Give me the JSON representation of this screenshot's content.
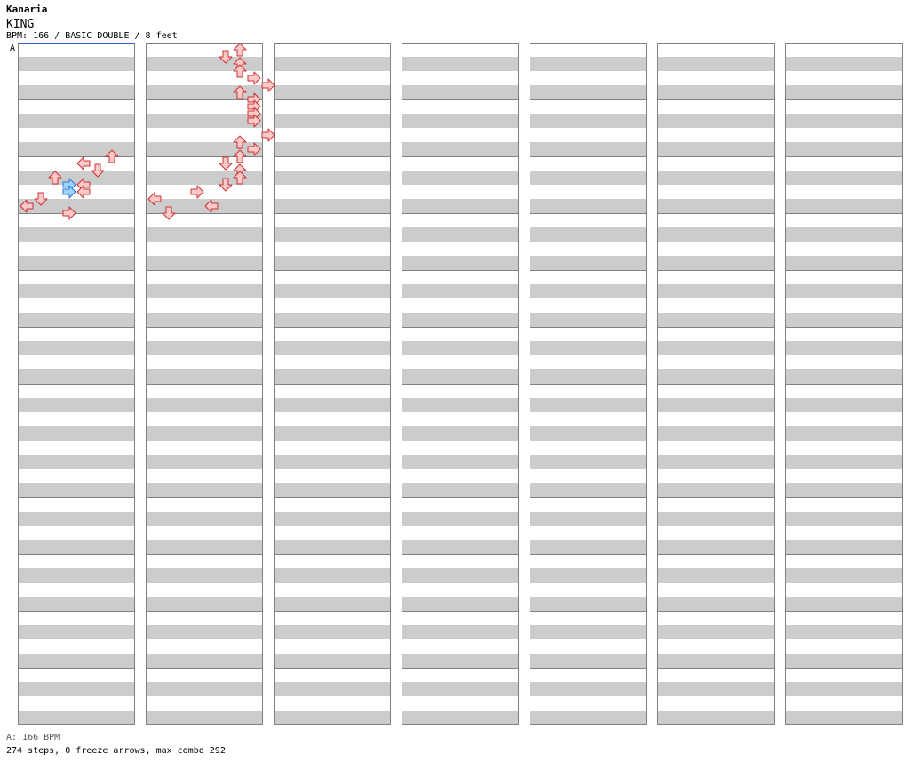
{
  "header": {
    "artist": "Kanaria",
    "title": "KING",
    "info": "BPM: 166 / BASIC DOUBLE / 8 feet",
    "bpm_marker": "A"
  },
  "footer": {
    "bpm_line": "A: 166 BPM",
    "stats": "274 steps, 0 freeze arrows, max combo 292"
  },
  "colors": {
    "arrow_red_fill": "#ffc8c8",
    "arrow_red_stroke": "#c83232",
    "arrow_blue_fill": "#a0d2ff",
    "arrow_blue_stroke": "#2878c8",
    "band_gray": "#cccccc",
    "band_white": "#ffffff",
    "border": "#808080",
    "bpm_line": "#3264c8"
  },
  "chart_data": {
    "type": "stepchart",
    "columns": 7,
    "measures_per_column": 12,
    "lanes": [
      "L",
      "D",
      "U",
      "R",
      "L",
      "D",
      "U",
      "R"
    ],
    "lane_units": 8,
    "measure_units": 8,
    "notes": [
      [
        0,
        7.5,
        6,
        0
      ],
      [
        0,
        8,
        4,
        0
      ],
      [
        0,
        8.5,
        5,
        0
      ],
      [
        0,
        9,
        2,
        0
      ],
      [
        0,
        9.5,
        3,
        1
      ],
      [
        0,
        9.5,
        4,
        0
      ],
      [
        0,
        10,
        3,
        1
      ],
      [
        0,
        10,
        4,
        0
      ],
      [
        0,
        10.5,
        1,
        0
      ],
      [
        0,
        11,
        0,
        0
      ],
      [
        0,
        11.5,
        3,
        0
      ],
      [
        1,
        0,
        6,
        0
      ],
      [
        1,
        0.5,
        5,
        0
      ],
      [
        1,
        1,
        6,
        0
      ],
      [
        1,
        1.5,
        6,
        0
      ],
      [
        1,
        2,
        7,
        0
      ],
      [
        1,
        2.5,
        8,
        0
      ],
      [
        1,
        3,
        6,
        0
      ],
      [
        1,
        3.5,
        7,
        0
      ],
      [
        1,
        4,
        7,
        0
      ],
      [
        1,
        4.5,
        7,
        0
      ],
      [
        1,
        5,
        7,
        0
      ],
      [
        1,
        6,
        8,
        0
      ],
      [
        1,
        6.5,
        6,
        0
      ],
      [
        1,
        7,
        7,
        0
      ],
      [
        1,
        7.5,
        6,
        0
      ],
      [
        1,
        8,
        5,
        0
      ],
      [
        1,
        8.5,
        6,
        0
      ],
      [
        1,
        9,
        6,
        0
      ],
      [
        1,
        9.5,
        5,
        0
      ],
      [
        1,
        10,
        3,
        0
      ],
      [
        1,
        10.5,
        0,
        0
      ],
      [
        1,
        11,
        4,
        0
      ],
      [
        1,
        11.5,
        1,
        0
      ]
    ]
  }
}
